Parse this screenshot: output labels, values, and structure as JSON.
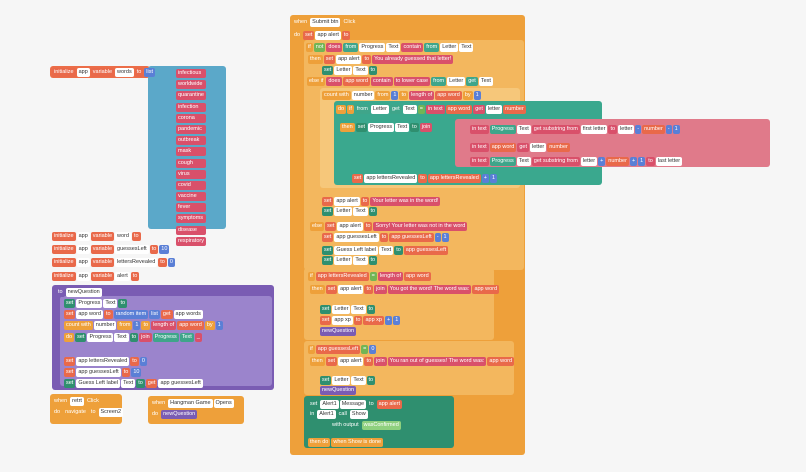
{
  "words_header": [
    "initialize",
    "app",
    "variable",
    "words",
    "to",
    "list"
  ],
  "words": [
    "infectious",
    "worldwide",
    "quarantine",
    "infection",
    "corona",
    "pandemic",
    "outbreak",
    "mask",
    "cough",
    "virus",
    "covid",
    "vaccine",
    "fever",
    "symptoms",
    "disease",
    "respiratory"
  ],
  "rows": [
    [
      "initialize",
      "app",
      "variable",
      "word",
      "to"
    ],
    [
      "initialize",
      "app",
      "variable",
      "guessesLeft",
      "to",
      "10"
    ],
    [
      "initialize",
      "app",
      "variable",
      "lettersRevealed",
      "to",
      "0"
    ],
    [
      "initialize",
      "app",
      "variable",
      "alert",
      "to"
    ],
    [
      "to",
      "newQuestion"
    ],
    [
      "set",
      "Progress",
      "Text",
      "to"
    ],
    [
      "set",
      "app word",
      "to",
      "random item",
      "list",
      "get",
      "app words"
    ],
    [
      "count with",
      "number",
      "from",
      "1",
      "to",
      "length of",
      "app word",
      "by",
      "1"
    ],
    [
      "do",
      "set",
      "Progress",
      "Text",
      "to",
      "join",
      "Progress",
      "Text",
      "_"
    ],
    [
      "set",
      "app lettersRevealed",
      "to",
      "0"
    ],
    [
      "set",
      "app guessesLeft",
      "to",
      "10"
    ],
    [
      "set",
      "Guess Left label",
      "Text",
      "to",
      "get",
      "app guessesLeft"
    ],
    [
      "when",
      "retrt",
      "Click"
    ],
    [
      "do",
      "navigate",
      "to",
      "Screen2"
    ],
    [
      "when",
      "Hangman Game",
      "Opens"
    ],
    [
      "do",
      "newQuestion"
    ],
    [
      "when",
      "Submit btn",
      "Click"
    ],
    [
      "do",
      "set",
      "app alert",
      "to"
    ],
    [
      "if",
      "not",
      "does",
      "from",
      "Progress",
      "Text",
      "contain",
      "from",
      "Letter",
      "Text"
    ],
    [
      "then",
      "set",
      "app alert",
      "to",
      "You already guessed that letter!"
    ],
    [
      "set",
      "Letter",
      "Text",
      "to"
    ],
    [
      "else if",
      "does",
      "app word",
      "contain",
      "to lower case",
      "from",
      "Letter",
      "get",
      "Text"
    ],
    [
      "count with",
      "number",
      "from",
      "1",
      "to",
      "length of",
      "app word",
      "by",
      "1"
    ],
    [
      "do",
      "if",
      "from",
      "Letter",
      "get",
      "Text",
      "=",
      "in text",
      "app word",
      "get",
      "letter",
      "number"
    ],
    [
      "then",
      "set",
      "Progress",
      "Text",
      "to",
      "join"
    ],
    [
      "in text",
      "Progress",
      "Text",
      "get substring from",
      "first letter",
      "to",
      "letter",
      "-",
      "number",
      "-",
      "1"
    ],
    [
      "in text",
      "app word",
      "get",
      "letter",
      "number"
    ],
    [
      "in text",
      "Progress",
      "Text",
      "get substring from",
      "letter",
      "+",
      "number",
      "+",
      "1",
      "to",
      "last letter"
    ],
    [
      "set",
      "app lettersRevealed",
      "to",
      "app lettersRevealed",
      "+",
      "1"
    ],
    [
      "set",
      "app alert",
      "to",
      "Your letter was in the word!"
    ],
    [
      "set",
      "Letter",
      "Text",
      "to"
    ],
    [
      "else",
      "set",
      "app alert",
      "to",
      "Sorry! Your letter was not in the word"
    ],
    [
      "set",
      "app guessesLeft",
      "to",
      "app guessesLeft",
      "-",
      "1"
    ],
    [
      "set",
      "Guess Left label",
      "Text",
      "to",
      "app guessesLeft"
    ],
    [
      "set",
      "Letter",
      "Text",
      "to"
    ],
    [
      "if",
      "app lettersRevealed",
      "=",
      "length of",
      "app word"
    ],
    [
      "then",
      "set",
      "app alert",
      "to",
      "join",
      "You got the word! The word was:",
      "app word"
    ],
    [
      "set",
      "Letter",
      "Text",
      "to"
    ],
    [
      "set",
      "app xp",
      "to",
      "app xp",
      "+",
      "1"
    ],
    [
      "newQuestion"
    ],
    [
      "if",
      "app guessesLeft",
      "=",
      "0"
    ],
    [
      "then",
      "set",
      "app alert",
      "to",
      "join",
      "You ran out of guesses! The word was:",
      "app word"
    ],
    [
      "set",
      "Letter",
      "Text",
      "to"
    ],
    [
      "newQuestion"
    ],
    [
      "set",
      "Alert1",
      "Message",
      "to",
      "app alert"
    ],
    [
      "in",
      "Alert1",
      "call",
      "Show"
    ],
    [
      "with output",
      "wasConfirmed"
    ],
    [
      "then do",
      "when Show is done"
    ]
  ]
}
